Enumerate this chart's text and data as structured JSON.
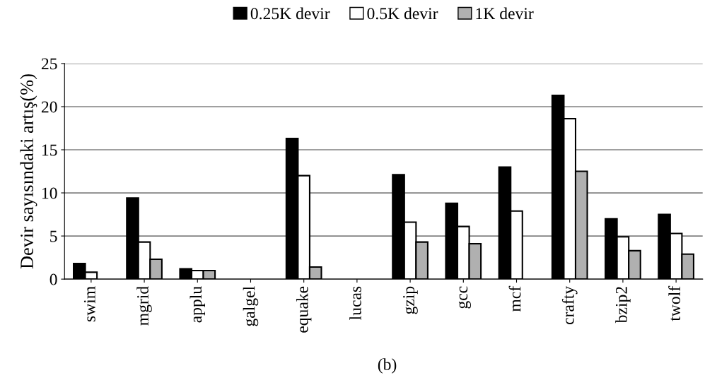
{
  "chart_data": {
    "type": "bar",
    "categories": [
      "swim",
      "mgrid",
      "applu",
      "galgel",
      "equake",
      "lucas",
      "gzip",
      "gcc",
      "mcf",
      "crafty",
      "bzip2",
      "twolf"
    ],
    "series": [
      {
        "name": "0.25K devir",
        "color": "#000000",
        "values": [
          1.8,
          9.4,
          1.2,
          null,
          16.3,
          null,
          12.1,
          8.8,
          13.0,
          21.3,
          7.0,
          7.5
        ]
      },
      {
        "name": "0.5K devir",
        "color": "#ffffff",
        "values": [
          0.8,
          4.3,
          1.0,
          null,
          12.0,
          null,
          6.6,
          6.1,
          7.9,
          18.6,
          4.9,
          5.3
        ]
      },
      {
        "name": "1K devir",
        "color": "#b0b0b0",
        "values": [
          null,
          2.3,
          1.0,
          null,
          1.4,
          null,
          4.3,
          4.1,
          null,
          12.5,
          3.3,
          2.9
        ]
      }
    ],
    "ylabel": "Devir sayısındaki artış(%)",
    "ylim": [
      0,
      25
    ],
    "yticks": [
      0,
      5,
      10,
      15,
      20,
      25
    ],
    "grid": "y",
    "legend": "top",
    "annotations": [
      "(b)"
    ]
  }
}
